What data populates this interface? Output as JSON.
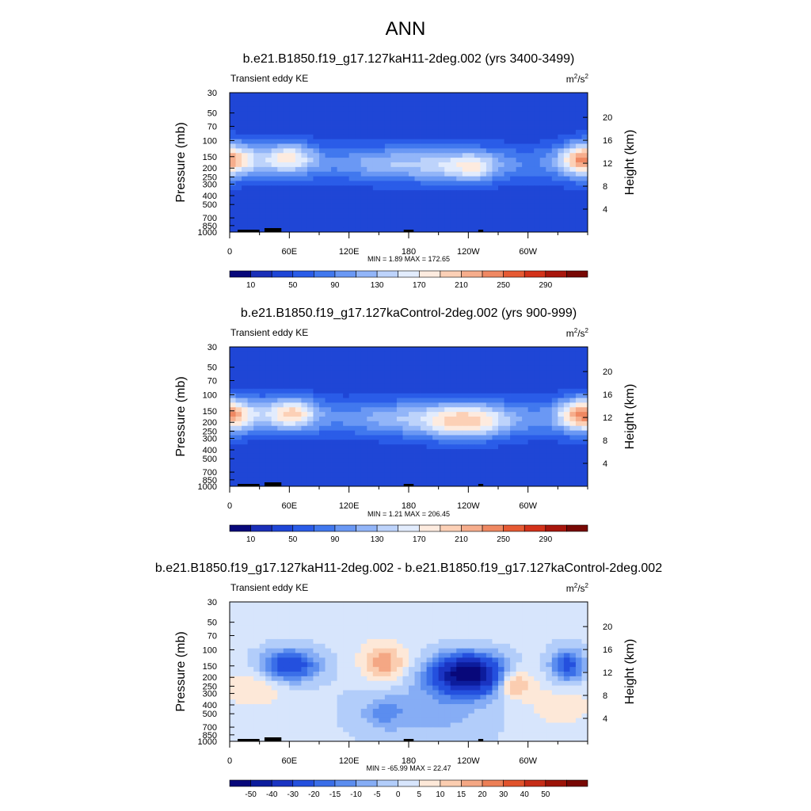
{
  "main_title": "ANN",
  "cbar_colors_abs": [
    "#08087a",
    "#1a2fb8",
    "#1f46d6",
    "#2a5ce8",
    "#4178ee",
    "#6a98f4",
    "#92b5f8",
    "#bdd3fb",
    "#e2ecfd",
    "#fdebdf",
    "#fcd0b6",
    "#f6ad8c",
    "#ef8862",
    "#e65a33",
    "#d3321a",
    "#a8160c",
    "#780804"
  ],
  "cbar_colors_diff": [
    "#08087a",
    "#0c1c9c",
    "#1a34c2",
    "#2450de",
    "#3a6ee8",
    "#5b8def",
    "#86adf5",
    "#b2cdfa",
    "#d7e5fc",
    "#fde8d8",
    "#fbcdb0",
    "#f4a784",
    "#ec7f56",
    "#e1532c",
    "#c62d18",
    "#9c1408",
    "#780804"
  ],
  "chart_data": [
    {
      "type": "heatmap",
      "title": "b.e21.B1850.f19_g17.127kaH11-2deg.002 (yrs 3400-3499)",
      "left_label": "Transient eddy KE",
      "units_base": "m",
      "units_exp1": "2",
      "units_mid": "/s",
      "units_exp2": "2",
      "ylabel": "Pressure (mb)",
      "y2label": "Height (km)",
      "x_ticks": [
        "0",
        "60E",
        "120E",
        "180",
        "120W",
        "60W"
      ],
      "x_tick_lon": [
        0,
        60,
        120,
        180,
        240,
        300
      ],
      "xlim": [
        0,
        360
      ],
      "pressure_levels": [
        "30",
        "50",
        "70",
        "100",
        "150",
        "200",
        "250",
        "300",
        "400",
        "500",
        "700",
        "850",
        "1000"
      ],
      "pressure_values": [
        30,
        50,
        70,
        100,
        150,
        200,
        250,
        300,
        400,
        500,
        700,
        850,
        1000
      ],
      "height_ticks": [
        "20",
        "16",
        "12",
        "8",
        "4"
      ],
      "height_values": [
        20,
        16,
        12,
        8,
        4
      ],
      "min_text": "MIN =   1.89  MAX = 172.65",
      "min": 1.89,
      "max": 172.65,
      "cbar_labels": [
        "10",
        "50",
        "90",
        "130",
        "170",
        "210",
        "250",
        "290"
      ],
      "cbar_label_slots": [
        1,
        3,
        5,
        7,
        9,
        11,
        13,
        15
      ],
      "field": "abs1"
    },
    {
      "type": "heatmap",
      "title": "b.e21.B1850.f19_g17.127kaControl-2deg.002 (yrs 900-999)",
      "left_label": "Transient eddy KE",
      "units_base": "m",
      "units_exp1": "2",
      "units_mid": "/s",
      "units_exp2": "2",
      "ylabel": "Pressure (mb)",
      "y2label": "Height (km)",
      "x_ticks": [
        "0",
        "60E",
        "120E",
        "180",
        "120W",
        "60W"
      ],
      "x_tick_lon": [
        0,
        60,
        120,
        180,
        240,
        300
      ],
      "xlim": [
        0,
        360
      ],
      "pressure_levels": [
        "30",
        "50",
        "70",
        "100",
        "150",
        "200",
        "250",
        "300",
        "400",
        "500",
        "700",
        "850",
        "1000"
      ],
      "pressure_values": [
        30,
        50,
        70,
        100,
        150,
        200,
        250,
        300,
        400,
        500,
        700,
        850,
        1000
      ],
      "height_ticks": [
        "20",
        "16",
        "12",
        "8",
        "4"
      ],
      "height_values": [
        20,
        16,
        12,
        8,
        4
      ],
      "min_text": "MIN =   1.21  MAX = 206.45",
      "min": 1.21,
      "max": 206.45,
      "cbar_labels": [
        "10",
        "50",
        "90",
        "130",
        "170",
        "210",
        "250",
        "290"
      ],
      "cbar_label_slots": [
        1,
        3,
        5,
        7,
        9,
        11,
        13,
        15
      ],
      "field": "abs2"
    },
    {
      "type": "heatmap",
      "title": "b.e21.B1850.f19_g17.127kaH11-2deg.002 - b.e21.B1850.f19_g17.127kaControl-2deg.002",
      "left_label": "Transient eddy KE",
      "units_base": "m",
      "units_exp1": "2",
      "units_mid": "/s",
      "units_exp2": "2",
      "ylabel": "Pressure (mb)",
      "y2label": "Height (km)",
      "x_ticks": [
        "0",
        "60E",
        "120E",
        "180",
        "120W",
        "60W"
      ],
      "x_tick_lon": [
        0,
        60,
        120,
        180,
        240,
        300
      ],
      "xlim": [
        0,
        360
      ],
      "pressure_levels": [
        "30",
        "50",
        "70",
        "100",
        "150",
        "200",
        "250",
        "300",
        "400",
        "500",
        "700",
        "850",
        "1000"
      ],
      "pressure_values": [
        30,
        50,
        70,
        100,
        150,
        200,
        250,
        300,
        400,
        500,
        700,
        850,
        1000
      ],
      "height_ticks": [
        "20",
        "16",
        "12",
        "8",
        "4"
      ],
      "height_values": [
        20,
        16,
        12,
        8,
        4
      ],
      "min_text": "MIN = -65.99  MAX =  22.47",
      "min": -65.99,
      "max": 22.47,
      "cbar_labels": [
        "-50",
        "-40",
        "-30",
        "-20",
        "-15",
        "-10",
        "-5",
        "0",
        "5",
        "10",
        "15",
        "20",
        "30",
        "40",
        "50"
      ],
      "cbar_label_slots": [
        1,
        2,
        3,
        4,
        5,
        6,
        7,
        8,
        9,
        10,
        11,
        12,
        13,
        14,
        15
      ],
      "field": "diff"
    }
  ]
}
